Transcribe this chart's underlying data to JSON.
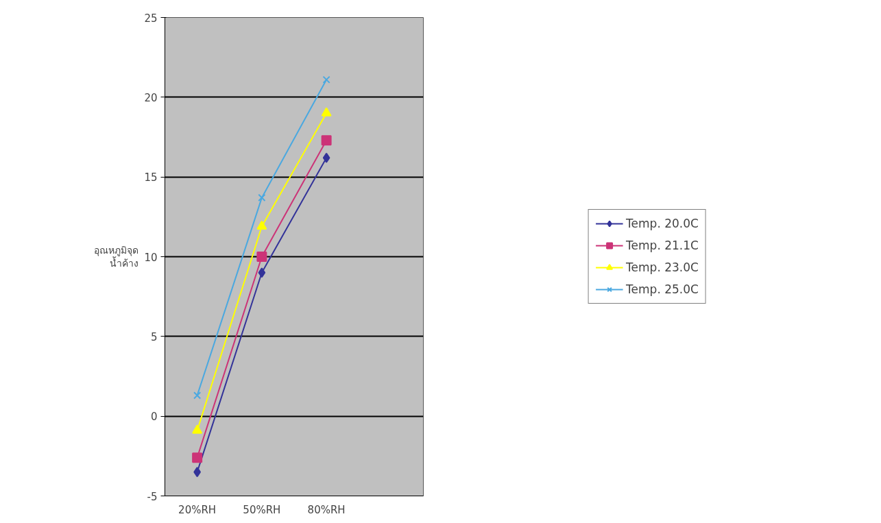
{
  "chart_data": {
    "type": "line",
    "ylabel": "อุณหภูมิจุด\nน้ำค้าง",
    "categories": [
      "20%RH",
      "50%RH",
      "80%RH",
      null
    ],
    "series": [
      {
        "name": "Temp. 20.0C",
        "color": "#333399",
        "marker": "diamond",
        "values": [
          -3.5,
          9.0,
          16.2,
          null
        ]
      },
      {
        "name": "Temp. 21.1C",
        "color": "#cc3377",
        "marker": "square",
        "values": [
          -2.6,
          10.0,
          17.3,
          null
        ]
      },
      {
        "name": "Temp. 23.0C",
        "color": "#ffff00",
        "marker": "triangle",
        "values": [
          -0.9,
          11.9,
          19.0,
          null
        ]
      },
      {
        "name": "Temp. 25.0C",
        "color": "#4aa8e0",
        "marker": "cross",
        "values": [
          1.3,
          13.7,
          21.1,
          null
        ]
      }
    ],
    "ylim": [
      -5,
      25
    ],
    "yticks": [
      -5,
      0,
      5,
      10,
      15,
      20,
      25
    ],
    "grid": "y",
    "legend": "right",
    "line_style": "solid"
  }
}
